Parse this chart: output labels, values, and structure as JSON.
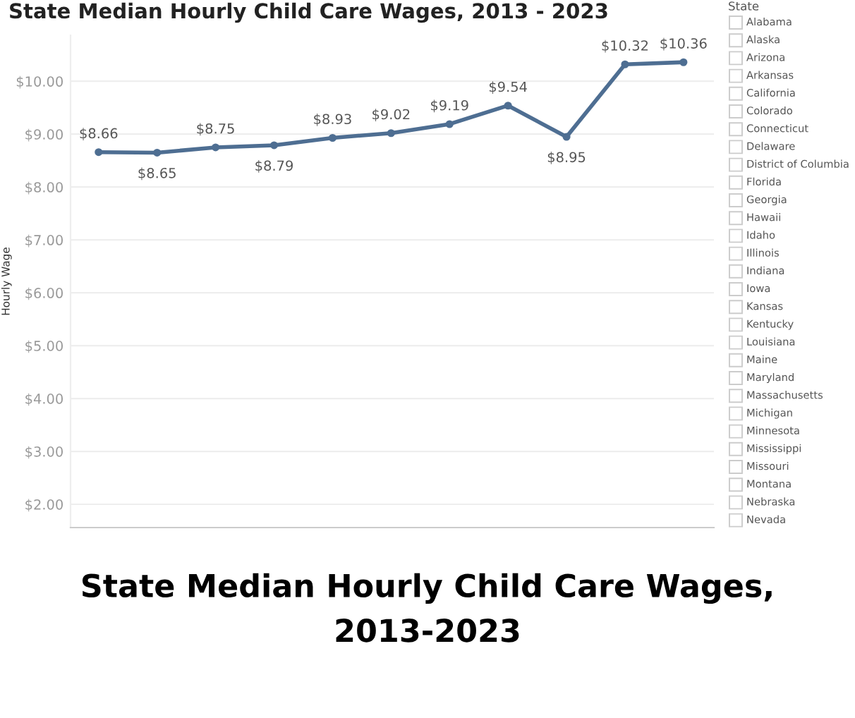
{
  "chart_data": [
    {
      "type": "line",
      "title": "State Median Hourly Child Care Wages, 2013 - 2023",
      "ylabel": "Hourly Wage",
      "categories": [
        null,
        null,
        null,
        null,
        null,
        null,
        null,
        null,
        null,
        null,
        null
      ],
      "series": [
        {
          "color": "#4e6e92",
          "values": [
            8.66,
            8.65,
            8.75,
            8.79,
            8.93,
            9.02,
            9.19,
            9.54,
            8.95,
            10.32,
            10.36
          ],
          "value_labels": [
            "$8.66",
            "$8.65",
            "$8.75",
            "$8.79",
            "$8.93",
            "$9.02",
            "$9.19",
            "$9.54",
            "$8.95",
            "$10.32",
            "$10.36"
          ]
        }
      ],
      "ylim": [
        1.56,
        10.87
      ],
      "yticks": [
        {
          "value": 2,
          "label": "$2.00"
        },
        {
          "value": 3,
          "label": "$3.00"
        },
        {
          "value": 4,
          "label": "$4.00"
        },
        {
          "value": 5,
          "label": "$5.00"
        },
        {
          "value": 6,
          "label": "$6.00"
        },
        {
          "value": 7,
          "label": "$7.00"
        },
        {
          "value": 8,
          "label": "$8.00"
        },
        {
          "value": 9,
          "label": "$9.00"
        },
        {
          "value": 10,
          "label": "$10.00"
        }
      ],
      "grid": "y",
      "marker": "circle",
      "line_style": "solid",
      "tick_labels": "y",
      "legend": false,
      "annotations": [
        "State Median Hourly Child Care Wages,\n2013-2023"
      ]
    },
    {
      "type": "other",
      "title": "State",
      "annotations": [
        "Alabama",
        "Alaska",
        "Arizona",
        "Arkansas",
        "California",
        "Colorado",
        "Connecticut",
        "Delaware",
        "District of Columbia",
        "Florida",
        "Georgia",
        "Hawaii",
        "Idaho",
        "Illinois",
        "Indiana",
        "Iowa",
        "Kansas",
        "Kentucky",
        "Louisiana",
        "Maine",
        "Maryland",
        "Massachusetts",
        "Michigan",
        "Minnesota",
        "Mississippi",
        "Missouri",
        "Montana",
        "Nebraska",
        "Nevada"
      ]
    }
  ]
}
